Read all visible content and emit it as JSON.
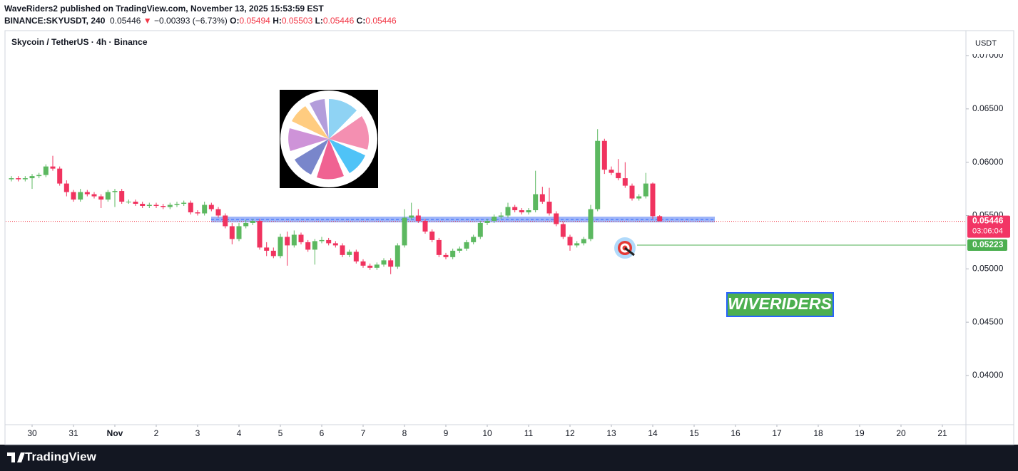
{
  "header": {
    "line1": "WaveRiders2 published on TradingView.com, November 13, 2025 15:53:59 EST",
    "symbol": "BINANCE:SKYUSDT, 240",
    "last": "0.05446",
    "arrow": "▼",
    "change": "−0.00393 (−6.73%)",
    "ohlc": [
      {
        "label": "O:",
        "value": "0.05494"
      },
      {
        "label": "H:",
        "value": "0.05503"
      },
      {
        "label": "L:",
        "value": "0.05446"
      },
      {
        "label": "C:",
        "value": "0.05446"
      }
    ]
  },
  "footer": {
    "brand": "TradingView"
  },
  "chart_data": {
    "type": "candlestick",
    "legend": "Skycoin / TetherUS · 4h · Binance",
    "y_unit": "USDT",
    "up_color": "#5cb860",
    "down_color": "#f0335f",
    "x": [
      -0.5,
      -0.333,
      -0.167,
      0,
      0.167,
      0.333,
      0.5,
      0.667,
      0.833,
      1,
      1.167,
      1.333,
      1.5,
      1.667,
      1.833,
      2,
      2.167,
      2.333,
      2.5,
      2.667,
      2.833,
      3,
      3.167,
      3.333,
      3.5,
      3.667,
      3.833,
      4,
      4.167,
      4.333,
      4.5,
      4.667,
      4.833,
      5,
      5.167,
      5.333,
      5.5,
      5.667,
      5.833,
      6,
      6.167,
      6.333,
      6.5,
      6.667,
      6.833,
      7,
      7.167,
      7.333,
      7.5,
      7.667,
      7.833,
      8,
      8.167,
      8.333,
      8.5,
      8.667,
      8.833,
      9,
      9.167,
      9.333,
      9.5,
      9.667,
      9.833,
      10,
      10.167,
      10.333,
      10.5,
      10.667,
      10.833,
      11,
      11.167,
      11.333,
      11.5,
      11.667,
      11.833,
      12,
      12.167,
      12.333,
      12.5,
      12.667,
      12.833,
      13,
      13.167,
      13.333,
      13.5,
      13.667,
      13.833,
      14,
      14.167,
      14.333,
      14.5,
      14.667,
      14.833,
      15,
      15.167
    ],
    "series": [
      {
        "open": [
          0.0584,
          0.0585,
          0.0584,
          0.0585,
          0.0587,
          0.0588,
          0.0596,
          0.0594,
          0.058,
          0.0572,
          0.0565,
          0.0572,
          0.057,
          0.0568,
          0.0565,
          0.0572,
          0.0573,
          0.0563,
          0.0563,
          0.0561,
          0.0559,
          0.056,
          0.0559,
          0.0558,
          0.056,
          0.0561,
          0.0562,
          0.0553,
          0.0552,
          0.056,
          0.0556,
          0.055,
          0.054,
          0.0528,
          0.054,
          0.0543,
          0.0545,
          0.052,
          0.0517,
          0.0512,
          0.053,
          0.0522,
          0.0532,
          0.0525,
          0.0518,
          0.0526,
          0.0527,
          0.0524,
          0.0522,
          0.0513,
          0.0516,
          0.0507,
          0.0503,
          0.0501,
          0.0504,
          0.0508,
          0.0502,
          0.0522,
          0.0548,
          0.055,
          0.0545,
          0.0535,
          0.0527,
          0.0513,
          0.0511,
          0.0517,
          0.0519,
          0.0525,
          0.053,
          0.0543,
          0.0545,
          0.0549,
          0.055,
          0.0558,
          0.0555,
          0.0553,
          0.0555,
          0.057,
          0.0563,
          0.0552,
          0.0542,
          0.053,
          0.0522,
          0.0524,
          0.0528,
          0.0556,
          0.062,
          0.0593,
          0.059,
          0.0585,
          0.0578,
          0.0566,
          0.0568,
          0.058,
          0.05494
        ],
        "high": [
          0.0587,
          0.0587,
          0.0587,
          0.0589,
          0.059,
          0.0598,
          0.0606,
          0.0596,
          0.0583,
          0.0574,
          0.0575,
          0.0574,
          0.0572,
          0.057,
          0.0574,
          0.0575,
          0.0575,
          0.0565,
          0.0565,
          0.0563,
          0.0562,
          0.0562,
          0.0561,
          0.0562,
          0.0563,
          0.0564,
          0.0564,
          0.0555,
          0.0563,
          0.0562,
          0.0558,
          0.0552,
          0.0543,
          0.0543,
          0.0546,
          0.0547,
          0.0547,
          0.0525,
          0.052,
          0.0533,
          0.0535,
          0.0536,
          0.0534,
          0.0527,
          0.0528,
          0.053,
          0.0529,
          0.0526,
          0.0524,
          0.0518,
          0.0518,
          0.0509,
          0.0505,
          0.0506,
          0.051,
          0.051,
          0.0524,
          0.0556,
          0.0562,
          0.0556,
          0.0547,
          0.0537,
          0.0529,
          0.0515,
          0.0519,
          0.0521,
          0.0527,
          0.0532,
          0.0545,
          0.0547,
          0.0551,
          0.0553,
          0.0562,
          0.056,
          0.0557,
          0.0557,
          0.0592,
          0.0577,
          0.0576,
          0.0554,
          0.0544,
          0.0532,
          0.0526,
          0.053,
          0.056,
          0.0631,
          0.0622,
          0.0596,
          0.0603,
          0.06,
          0.058,
          0.057,
          0.059,
          0.0581,
          0.05503
        ],
        "low": [
          0.0582,
          0.0582,
          0.0582,
          0.0575,
          0.0585,
          0.0586,
          0.0592,
          0.0578,
          0.0568,
          0.0563,
          0.0563,
          0.0568,
          0.0566,
          0.0557,
          0.0563,
          0.0558,
          0.0561,
          0.0561,
          0.0559,
          0.0557,
          0.0557,
          0.0557,
          0.0556,
          0.0556,
          0.0558,
          0.0559,
          0.0551,
          0.055,
          0.055,
          0.0554,
          0.0548,
          0.0538,
          0.0523,
          0.0526,
          0.0538,
          0.0541,
          0.0518,
          0.0512,
          0.051,
          0.051,
          0.0503,
          0.052,
          0.0523,
          0.0516,
          0.0504,
          0.0524,
          0.0522,
          0.052,
          0.0511,
          0.0511,
          0.0505,
          0.0501,
          0.0499,
          0.0499,
          0.0502,
          0.0495,
          0.05,
          0.052,
          0.0546,
          0.0543,
          0.0533,
          0.0525,
          0.0511,
          0.0509,
          0.0509,
          0.0515,
          0.0517,
          0.0523,
          0.0528,
          0.0541,
          0.0543,
          0.0547,
          0.0548,
          0.0553,
          0.0551,
          0.0551,
          0.0553,
          0.0561,
          0.055,
          0.054,
          0.0528,
          0.0517,
          0.052,
          0.0522,
          0.0526,
          0.0554,
          0.0589,
          0.0588,
          0.0583,
          0.0576,
          0.0564,
          0.0564,
          0.0566,
          0.0547,
          0.05446
        ],
        "close": [
          0.0585,
          0.0584,
          0.0585,
          0.0587,
          0.0588,
          0.0596,
          0.0594,
          0.058,
          0.0572,
          0.0565,
          0.0572,
          0.057,
          0.0568,
          0.0565,
          0.0572,
          0.0573,
          0.0563,
          0.0563,
          0.0561,
          0.0559,
          0.056,
          0.0559,
          0.0558,
          0.056,
          0.0561,
          0.0562,
          0.0553,
          0.0552,
          0.056,
          0.0556,
          0.055,
          0.054,
          0.0528,
          0.054,
          0.0543,
          0.0545,
          0.052,
          0.0517,
          0.0512,
          0.053,
          0.0522,
          0.0532,
          0.0525,
          0.0518,
          0.0526,
          0.0527,
          0.0524,
          0.0522,
          0.0513,
          0.0516,
          0.0507,
          0.0503,
          0.0501,
          0.0504,
          0.0508,
          0.0502,
          0.0522,
          0.0548,
          0.055,
          0.0545,
          0.0535,
          0.0527,
          0.0513,
          0.0511,
          0.0517,
          0.0519,
          0.0525,
          0.053,
          0.0543,
          0.0545,
          0.0549,
          0.055,
          0.0558,
          0.0555,
          0.0553,
          0.0555,
          0.057,
          0.0563,
          0.0552,
          0.0542,
          0.053,
          0.0522,
          0.0524,
          0.0528,
          0.0556,
          0.062,
          0.0593,
          0.059,
          0.0585,
          0.0578,
          0.0566,
          0.0568,
          0.058,
          0.05494,
          0.05446
        ]
      }
    ],
    "xlim": [
      -0.638,
      22.569
    ],
    "xticks": [
      {
        "value": 0,
        "label": "30"
      },
      {
        "value": 1,
        "label": "31"
      },
      {
        "value": 2,
        "label": "Nov"
      },
      {
        "value": 3,
        "label": "2"
      },
      {
        "value": 4,
        "label": "3"
      },
      {
        "value": 5,
        "label": "4"
      },
      {
        "value": 6,
        "label": "5"
      },
      {
        "value": 7,
        "label": "6"
      },
      {
        "value": 8,
        "label": "7"
      },
      {
        "value": 9,
        "label": "8"
      },
      {
        "value": 10,
        "label": "9"
      },
      {
        "value": 11,
        "label": "10"
      },
      {
        "value": 12,
        "label": "11"
      },
      {
        "value": 13,
        "label": "12"
      },
      {
        "value": 14,
        "label": "13"
      },
      {
        "value": 15,
        "label": "14"
      },
      {
        "value": 16,
        "label": "15"
      },
      {
        "value": 17,
        "label": "16"
      },
      {
        "value": 18,
        "label": "17"
      },
      {
        "value": 19,
        "label": "18"
      },
      {
        "value": 20,
        "label": "19"
      },
      {
        "value": 21,
        "label": "20"
      },
      {
        "value": 22,
        "label": "21"
      }
    ],
    "ylim": [
      0.03539,
      0.07227
    ],
    "yticks": [
      {
        "value": 0.04,
        "label": "0.04000"
      },
      {
        "value": 0.045,
        "label": "0.04500"
      },
      {
        "value": 0.05,
        "label": "0.05000"
      },
      {
        "value": 0.055,
        "label": "0.05500"
      },
      {
        "value": 0.06,
        "label": "0.06000"
      },
      {
        "value": 0.065,
        "label": "0.06500"
      },
      {
        "value": 0.07,
        "label": "0.07000"
      }
    ],
    "grid": false,
    "last_price": {
      "value": 0.05446,
      "countdown": "03:06:04"
    },
    "target": {
      "value": 0.05223
    },
    "support_zone": [
      0.05436,
      0.0549
    ],
    "watermark": "WIVERIDERS"
  }
}
